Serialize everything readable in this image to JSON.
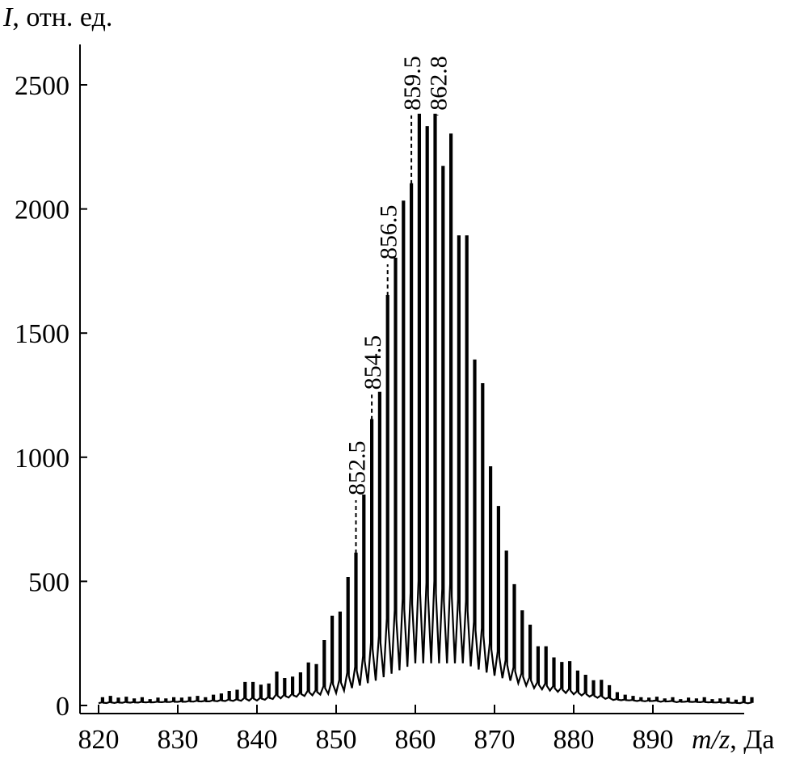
{
  "chart_data": {
    "type": "line",
    "title": "",
    "ylabel_var": "I",
    "ylabel_unit": ", отн. ед.",
    "xlabel_var": "m/z",
    "xlabel_unit": ", Да",
    "xlim": [
      818,
      903
    ],
    "ylim": [
      0,
      2650
    ],
    "x_ticks": [
      "820",
      "830",
      "840",
      "850",
      "860",
      "870",
      "880",
      "890"
    ],
    "y_ticks": [
      "0",
      "500",
      "1000",
      "1500",
      "2000",
      "2500"
    ],
    "grid": false,
    "legend": "none",
    "color": "#000000",
    "peaks_start_mz": 820.5,
    "peaks_step": 1,
    "peak_intensities": [
      30,
      35,
      28,
      32,
      25,
      30,
      22,
      28,
      25,
      30,
      28,
      32,
      35,
      30,
      40,
      45,
      55,
      60,
      91,
      91,
      80,
      85,
      133,
      107,
      113,
      130,
      170,
      163,
      260,
      358,
      375,
      514,
      612,
      846,
      1150,
      1260,
      1650,
      1800,
      2030,
      2100,
      2380,
      2330,
      2380,
      2170,
      2300,
      1890,
      1890,
      1390,
      1295,
      960,
      800,
      620,
      485,
      380,
      322,
      235,
      235,
      190,
      172,
      175,
      137,
      120,
      98,
      100,
      78,
      50,
      40,
      35,
      30,
      28,
      32,
      25,
      30,
      22,
      28,
      25,
      30,
      22,
      25,
      28,
      20,
      35,
      30
    ],
    "valley_envelope": [
      [
        818,
        8
      ],
      [
        840,
        20
      ],
      [
        850,
        50
      ],
      [
        855,
        100
      ],
      [
        860,
        170
      ],
      [
        866,
        170
      ],
      [
        870,
        120
      ],
      [
        875,
        70
      ],
      [
        880,
        45
      ],
      [
        885,
        22
      ],
      [
        903,
        8
      ]
    ],
    "annotations": [
      {
        "label": "852.5",
        "mz": 852.5,
        "label_at": 840
      },
      {
        "label": "854.5",
        "mz": 854.5,
        "label_at": 1265
      },
      {
        "label": "856.5",
        "mz": 856.5,
        "label_at": 1790
      },
      {
        "label": "859.5",
        "mz": 859.5,
        "label_at": 2390
      },
      {
        "label": "862.8",
        "mz": 862.8,
        "label_at": 2390
      }
    ]
  }
}
